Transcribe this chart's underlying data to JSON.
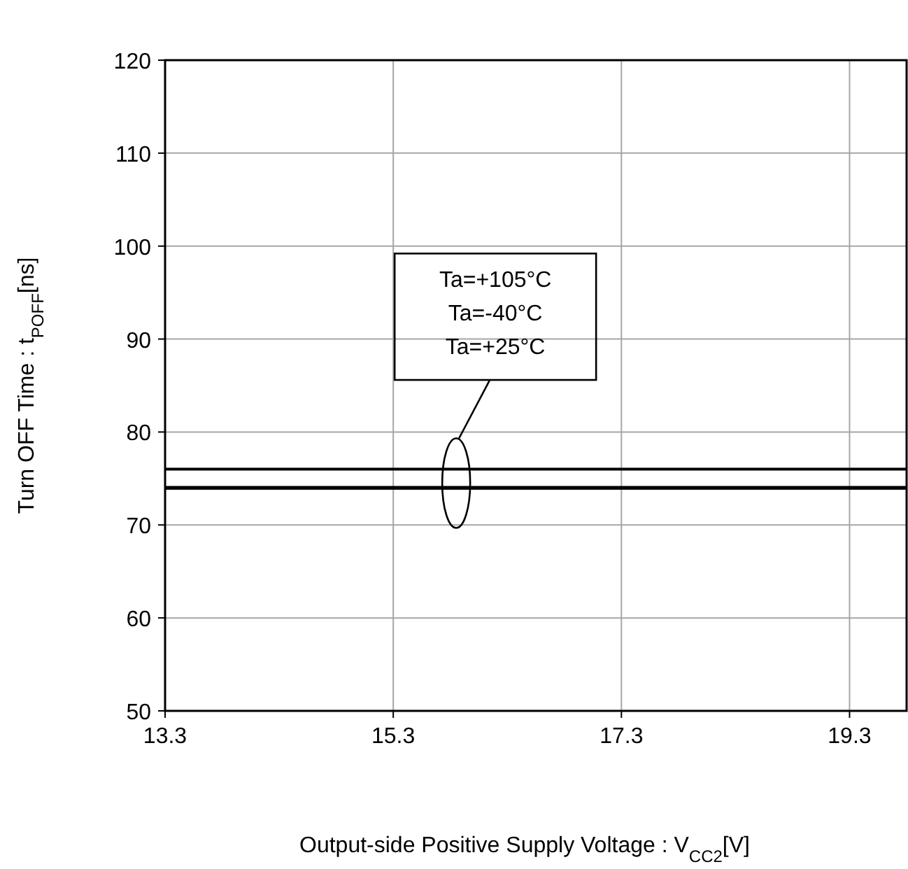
{
  "chart_data": {
    "type": "line",
    "xlabel": "Output-side Positive Supply Voltage : V$_{CC2}$[V]",
    "ylabel": "Turn OFF Time : t$_{POFF}$[ns]",
    "x": [
      13.3,
      19.8
    ],
    "series": [
      {
        "color": "#000000",
        "values": [
          76,
          76
        ]
      },
      {
        "color": "#000000",
        "values": [
          74,
          74
        ]
      },
      {
        "color": "#000000",
        "values": [
          74,
          74
        ]
      }
    ],
    "annotations": [
      "Ta=+105°C",
      "Ta=-40°C",
      "Ta=+25°C"
    ],
    "xlim": [
      13.3,
      19.8
    ],
    "xticks": [
      13.3,
      15.3,
      17.3,
      19.3
    ],
    "ylim": [
      50,
      120
    ],
    "yticks": [
      50,
      60,
      70,
      80,
      90,
      100,
      110,
      120
    ],
    "grid": true,
    "marker": "none",
    "line_style": "solid"
  }
}
